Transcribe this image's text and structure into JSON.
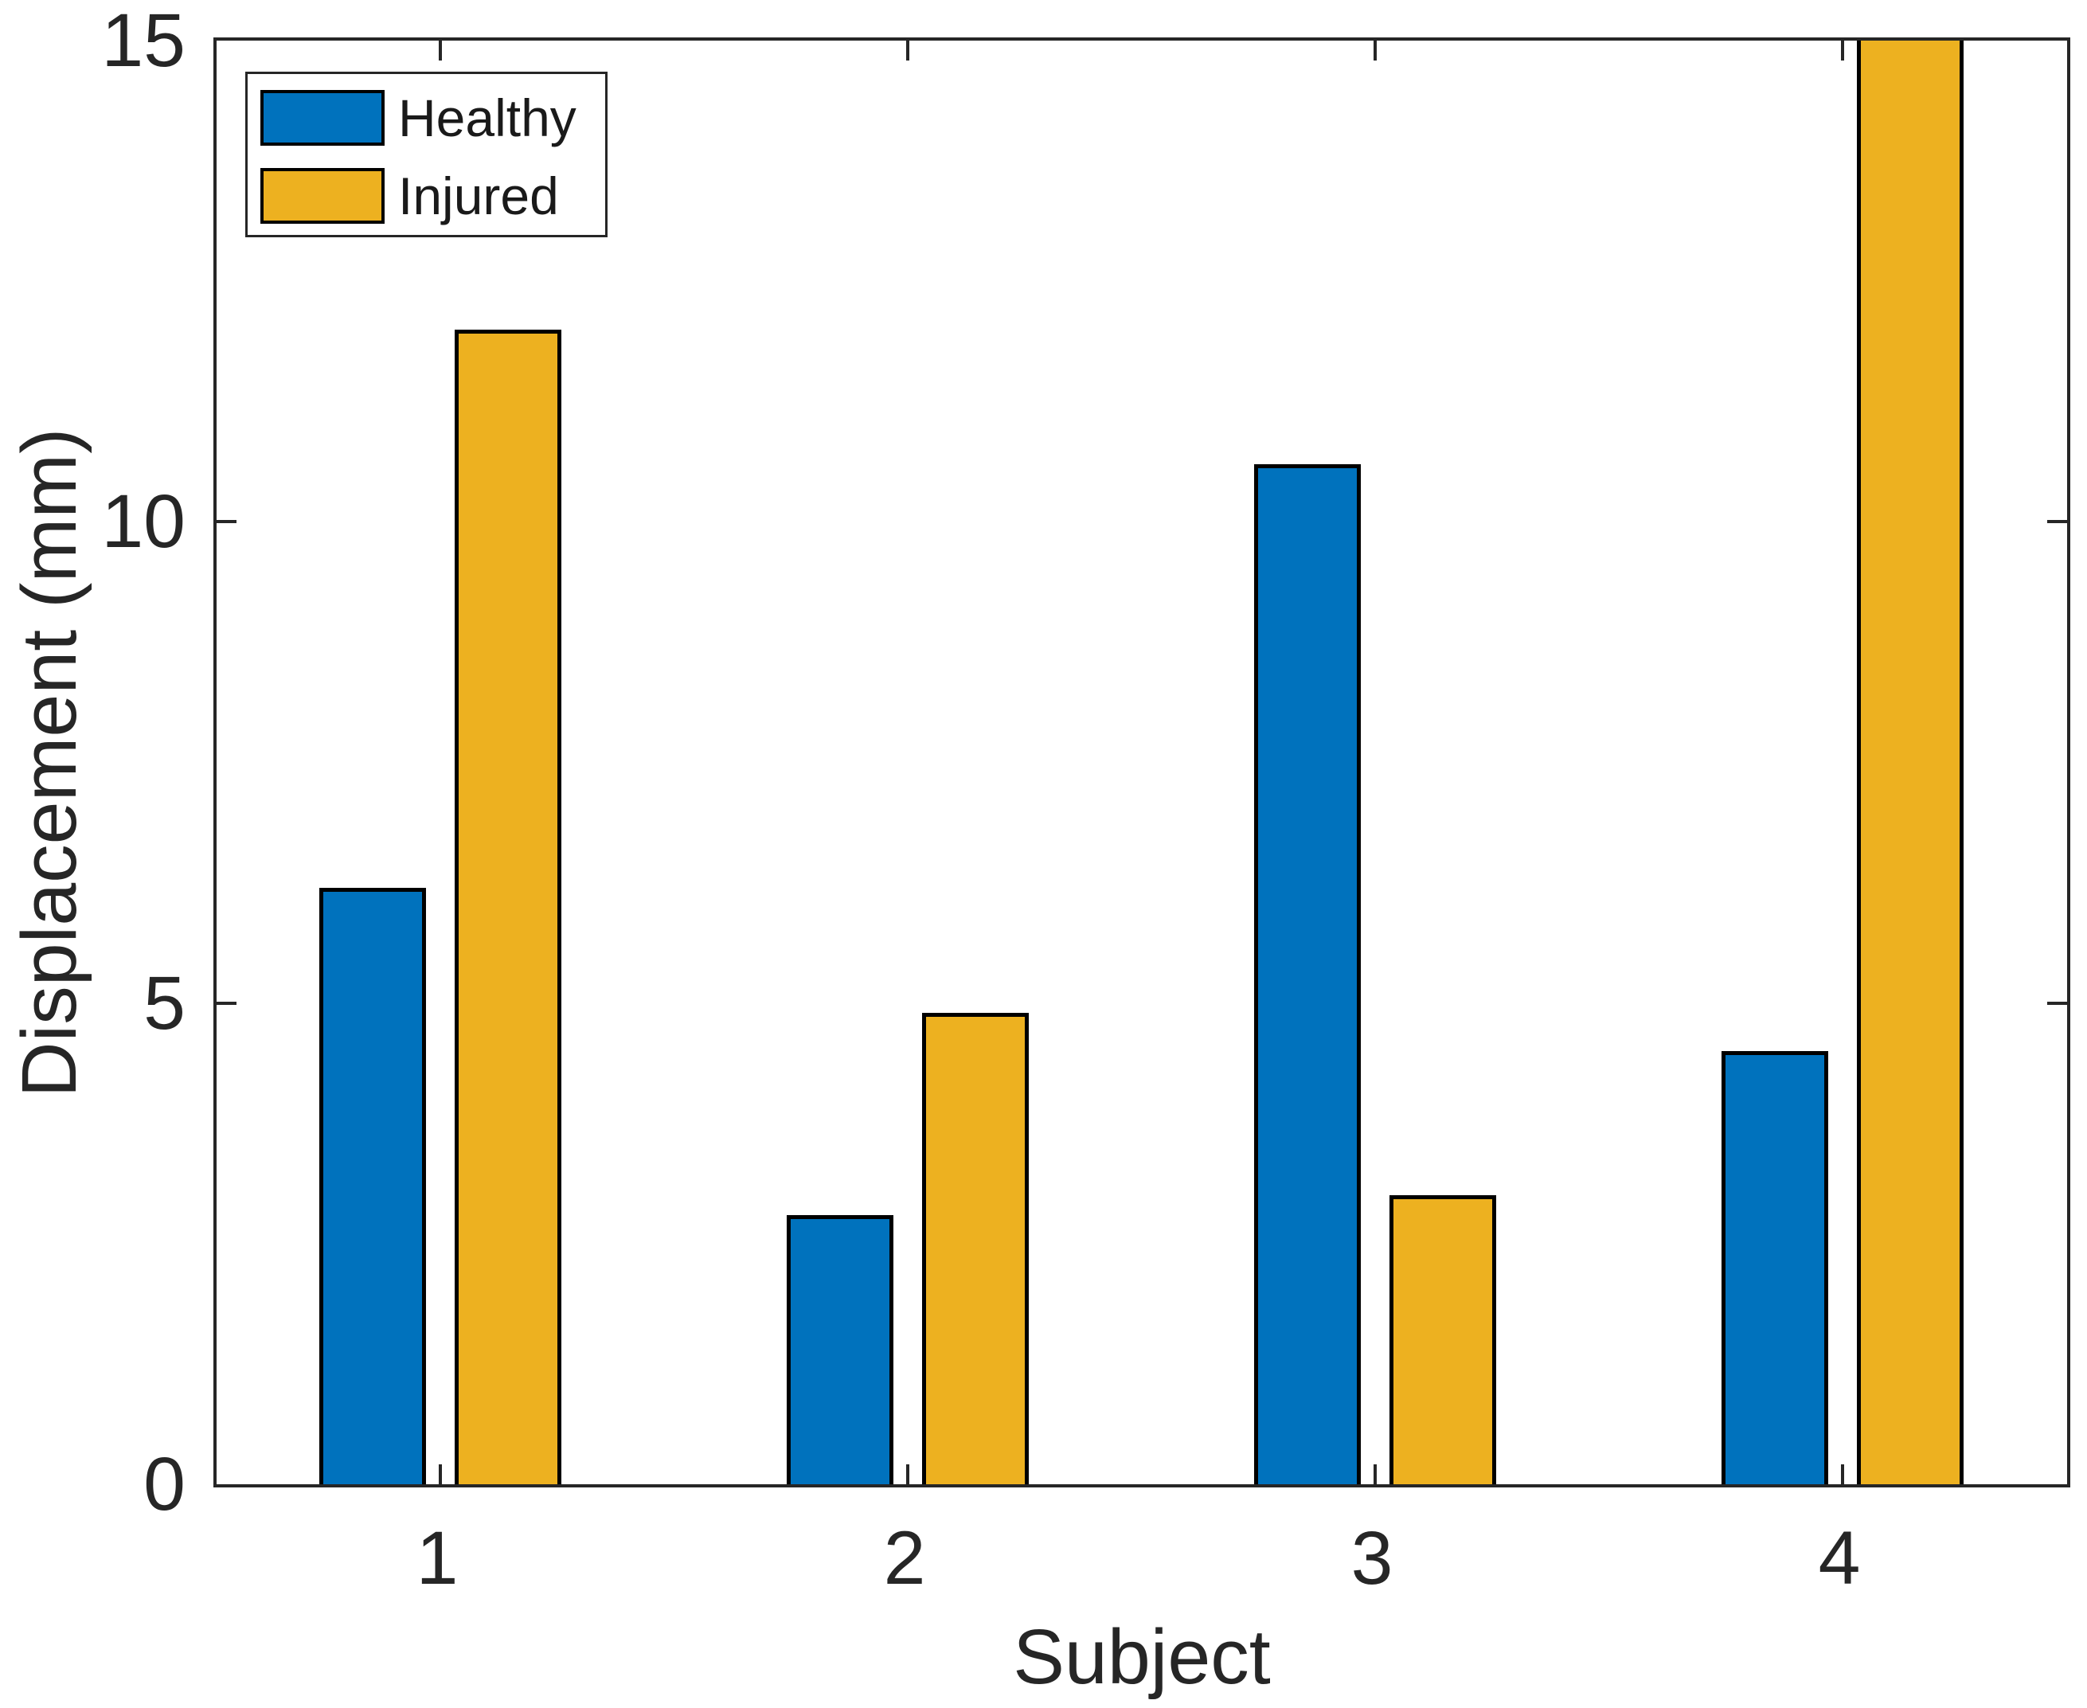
{
  "chart_data": {
    "type": "bar",
    "title": "",
    "xlabel": "Subject",
    "ylabel": "Displacement (mm)",
    "categories": [
      "1",
      "2",
      "3",
      "4"
    ],
    "series": [
      {
        "name": "Healthy",
        "color": "#0072BD",
        "values": [
          6.2,
          2.8,
          10.6,
          4.5
        ],
        "clipped": [
          false,
          false,
          false,
          false
        ]
      },
      {
        "name": "Injured",
        "color": "#EDB120",
        "values": [
          12.0,
          4.9,
          3.0,
          15.0
        ],
        "clipped": [
          false,
          false,
          false,
          true
        ]
      }
    ],
    "ylim": [
      0,
      15
    ],
    "yticks": [
      0,
      5,
      10,
      15
    ],
    "grid": false,
    "legend_position": "top-left",
    "bar_edge_color": "#000000",
    "axis_color": "#262626",
    "background_color": "#FFFFFF"
  }
}
